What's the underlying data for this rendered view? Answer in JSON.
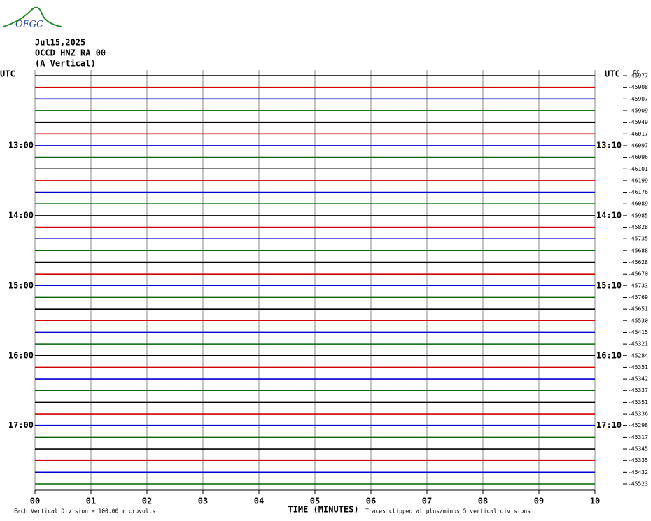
{
  "header": {
    "logo": "OFGC",
    "date": "Jul15,2025",
    "station": "OCCD HNZ RA 00",
    "component": "(A Vertical)"
  },
  "chart_data": {
    "type": "helicorder",
    "left_axis_title": "UTC",
    "right_axis_title": "UTC",
    "offset_title": "DC",
    "x_label": "TIME (MINUTES)",
    "scale_note": "Each Vertical Division =  100.00 microvolts",
    "clip_note": "Traces clipped at plus/minus 5 vertical divisions",
    "xlim": [
      0,
      10
    ],
    "xticks": [
      {
        "value": 0,
        "label": "00"
      },
      {
        "value": 1,
        "label": "01"
      },
      {
        "value": 2,
        "label": "02"
      },
      {
        "value": 3,
        "label": "03"
      },
      {
        "value": 4,
        "label": "04"
      },
      {
        "value": 5,
        "label": "05"
      },
      {
        "value": 6,
        "label": "06"
      },
      {
        "value": 7,
        "label": "07"
      },
      {
        "value": 8,
        "label": "08"
      },
      {
        "value": 9,
        "label": "09"
      },
      {
        "value": 10,
        "label": "10"
      }
    ],
    "grid": true,
    "colors": [
      "#000000",
      "#d00000",
      "#0000d0",
      "#006400"
    ],
    "left_row_labels": [
      null,
      null,
      null,
      null,
      null,
      null,
      "13:00",
      null,
      null,
      null,
      null,
      null,
      "14:00",
      null,
      null,
      null,
      null,
      null,
      "15:00",
      null,
      null,
      null,
      null,
      null,
      "16:00",
      null,
      null,
      null,
      null,
      null,
      "17:00",
      null,
      null,
      null,
      null,
      null
    ],
    "right_row_labels": [
      null,
      null,
      null,
      null,
      null,
      null,
      "13:10",
      null,
      null,
      null,
      null,
      null,
      "14:10",
      null,
      null,
      null,
      null,
      null,
      "15:10",
      null,
      null,
      null,
      null,
      null,
      "16:10",
      null,
      null,
      null,
      null,
      null,
      "17:10",
      null,
      null,
      null,
      null,
      null
    ],
    "dc_offsets": [
      -45977,
      -45908,
      -45907,
      -45909,
      -45949,
      -46017,
      -46097,
      -46096,
      -46101,
      -46199,
      -46176,
      -46089,
      -45985,
      -45828,
      -45735,
      -45688,
      -45628,
      -45670,
      -45733,
      -45769,
      -45651,
      -45530,
      -45415,
      -45321,
      -45284,
      -45351,
      -45342,
      -45337,
      -45351,
      -45336,
      -45298,
      -45317,
      -45345,
      -45335,
      -45432,
      -45523
    ]
  }
}
